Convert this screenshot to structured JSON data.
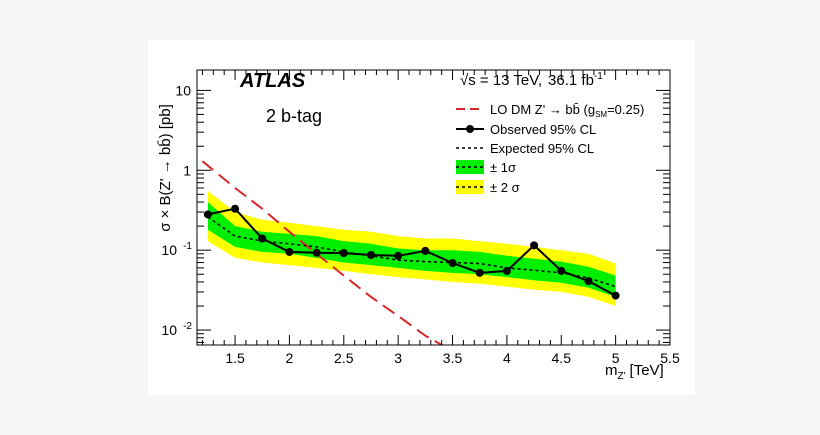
{
  "chart_data": {
    "type": "line",
    "experiment": "ATLAS",
    "energy": "√s = 13 TeV,",
    "luminosity": "36.1 fb",
    "luminosity_exp": "-1",
    "category": "2 b-tag",
    "xlabel": "m",
    "xlabel_sub": "Z'",
    "xlabel_unit": "[TeV]",
    "ylabel": "σ × B(Z' → bb̄) [pb]",
    "xlim": [
      1.15,
      5.5
    ],
    "ylim": [
      0.0065,
      18
    ],
    "yscale": "log",
    "x_ticks": [
      "1.5",
      "2",
      "2.5",
      "3",
      "3.5",
      "4",
      "4.5",
      "5",
      "5.5"
    ],
    "y_ticks": [
      {
        "base": "10",
        "exp": ""
      },
      {
        "base": "1",
        "exp": ""
      },
      {
        "base": "10",
        "exp": "-1"
      },
      {
        "base": "10",
        "exp": "-2"
      }
    ],
    "legend": {
      "theory": "LO DM Z' → bb̄ (g",
      "theory_sub": "SM",
      "theory_tail": "=0.25)",
      "observed": "Observed 95% CL",
      "expected": "Expected 95% CL",
      "band1": "± 1σ",
      "band2": "± 2 σ"
    },
    "colors": {
      "theory": "#d62728",
      "band1": "#00ee00",
      "band2": "#ffff00",
      "observed": "#000000"
    },
    "x": [
      1.25,
      1.5,
      1.75,
      2.0,
      2.25,
      2.5,
      2.75,
      3.0,
      3.25,
      3.5,
      3.75,
      4.0,
      4.25,
      4.5,
      4.75,
      5.0
    ],
    "series": [
      {
        "name": "Observed 95% CL",
        "values": [
          0.28,
          0.33,
          0.14,
          0.095,
          0.093,
          0.092,
          0.087,
          0.085,
          0.098,
          0.069,
          0.052,
          0.055,
          0.115,
          0.055,
          0.041,
          0.027
        ]
      },
      {
        "name": "Expected 95% CL",
        "values": [
          0.26,
          0.15,
          0.13,
          0.12,
          0.11,
          0.095,
          0.085,
          0.075,
          0.072,
          0.07,
          0.068,
          0.06,
          0.056,
          0.052,
          0.045,
          0.035
        ]
      },
      {
        "name": "LO DM Z' → bb̄ (gSM=0.25)",
        "x": [
          1.2,
          1.5,
          1.75,
          2.0,
          2.25,
          2.5,
          2.75,
          3.0,
          3.25,
          3.5
        ],
        "values": [
          1.3,
          0.6,
          0.33,
          0.17,
          0.09,
          0.048,
          0.026,
          0.015,
          0.0085,
          0.0055
        ]
      }
    ],
    "band_1sigma": {
      "lower": [
        0.18,
        0.11,
        0.095,
        0.09,
        0.08,
        0.07,
        0.065,
        0.06,
        0.055,
        0.052,
        0.05,
        0.046,
        0.042,
        0.039,
        0.034,
        0.026
      ],
      "upper": [
        0.4,
        0.2,
        0.17,
        0.16,
        0.15,
        0.13,
        0.12,
        0.105,
        0.1,
        0.1,
        0.095,
        0.085,
        0.078,
        0.072,
        0.062,
        0.048
      ]
    },
    "band_2sigma": {
      "lower": [
        0.13,
        0.08,
        0.07,
        0.065,
        0.06,
        0.055,
        0.05,
        0.046,
        0.043,
        0.04,
        0.038,
        0.035,
        0.032,
        0.03,
        0.026,
        0.02
      ],
      "upper": [
        0.55,
        0.3,
        0.24,
        0.22,
        0.2,
        0.18,
        0.17,
        0.15,
        0.14,
        0.14,
        0.13,
        0.12,
        0.11,
        0.1,
        0.09,
        0.068
      ]
    }
  }
}
